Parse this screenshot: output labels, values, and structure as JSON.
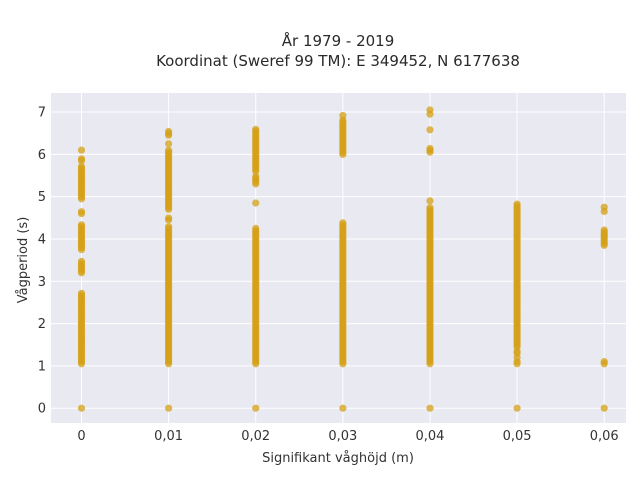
{
  "chart_data": {
    "type": "scatter",
    "title_line1": "År 1979 - 2019",
    "title_line2": "Koordinat (Sweref 99 TM): E 349452, N 6177638",
    "xlabel": "Signifikant våghöjd (m)",
    "ylabel": "Vågperiod (s)",
    "xlim": [
      -0.0035,
      0.0625
    ],
    "ylim": [
      -0.35,
      7.45
    ],
    "xticks": [
      0,
      0.01,
      0.02,
      0.03,
      0.04,
      0.05,
      0.06
    ],
    "xtick_labels": [
      "0",
      "0,01",
      "0,02",
      "0,03",
      "0,04",
      "0,05",
      "0,06"
    ],
    "yticks": [
      0,
      1,
      2,
      3,
      4,
      5,
      6,
      7
    ],
    "ytick_labels": [
      "0",
      "1",
      "2",
      "3",
      "4",
      "5",
      "6",
      "7"
    ],
    "grid": true,
    "legend": "none",
    "colors": {
      "marker": "#d4a017",
      "plot_background": "#e9e9f1",
      "grid": "#ffffff"
    },
    "series": [
      {
        "x": 0,
        "ranges": [
          [
            1.05,
            2.75
          ],
          [
            3.2,
            3.5
          ],
          [
            3.75,
            4.35
          ],
          [
            4.6,
            4.65
          ],
          [
            4.95,
            5.75
          ],
          [
            5.85,
            5.9
          ]
        ],
        "points": [
          0,
          6.1
        ]
      },
      {
        "x": 0.01,
        "ranges": [
          [
            1.05,
            4.3
          ],
          [
            4.45,
            4.5
          ],
          [
            4.7,
            6.1
          ],
          [
            6.45,
            6.55
          ]
        ],
        "points": [
          0,
          6.25
        ]
      },
      {
        "x": 0.02,
        "ranges": [
          [
            1.05,
            4.2
          ],
          [
            5.3,
            5.5
          ],
          [
            5.6,
            6.6
          ]
        ],
        "points": [
          0,
          4.25,
          4.85
        ]
      },
      {
        "x": 0.03,
        "ranges": [
          [
            1.05,
            4.4
          ],
          [
            6.0,
            6.85
          ]
        ],
        "points": [
          0,
          6.92
        ]
      },
      {
        "x": 0.04,
        "ranges": [
          [
            1.05,
            4.75
          ],
          [
            6.05,
            6.15
          ]
        ],
        "points": [
          0,
          4.9,
          6.58,
          6.95,
          7.05
        ]
      },
      {
        "x": 0.05,
        "ranges": [
          [
            1.45,
            4.85
          ]
        ],
        "points": [
          0,
          1.05,
          1.1,
          1.2,
          1.3,
          1.35
        ]
      },
      {
        "x": 0.06,
        "ranges": [
          [
            3.85,
            4.25
          ]
        ],
        "points": [
          0,
          1.05,
          1.1,
          4.65,
          4.75
        ]
      }
    ]
  }
}
